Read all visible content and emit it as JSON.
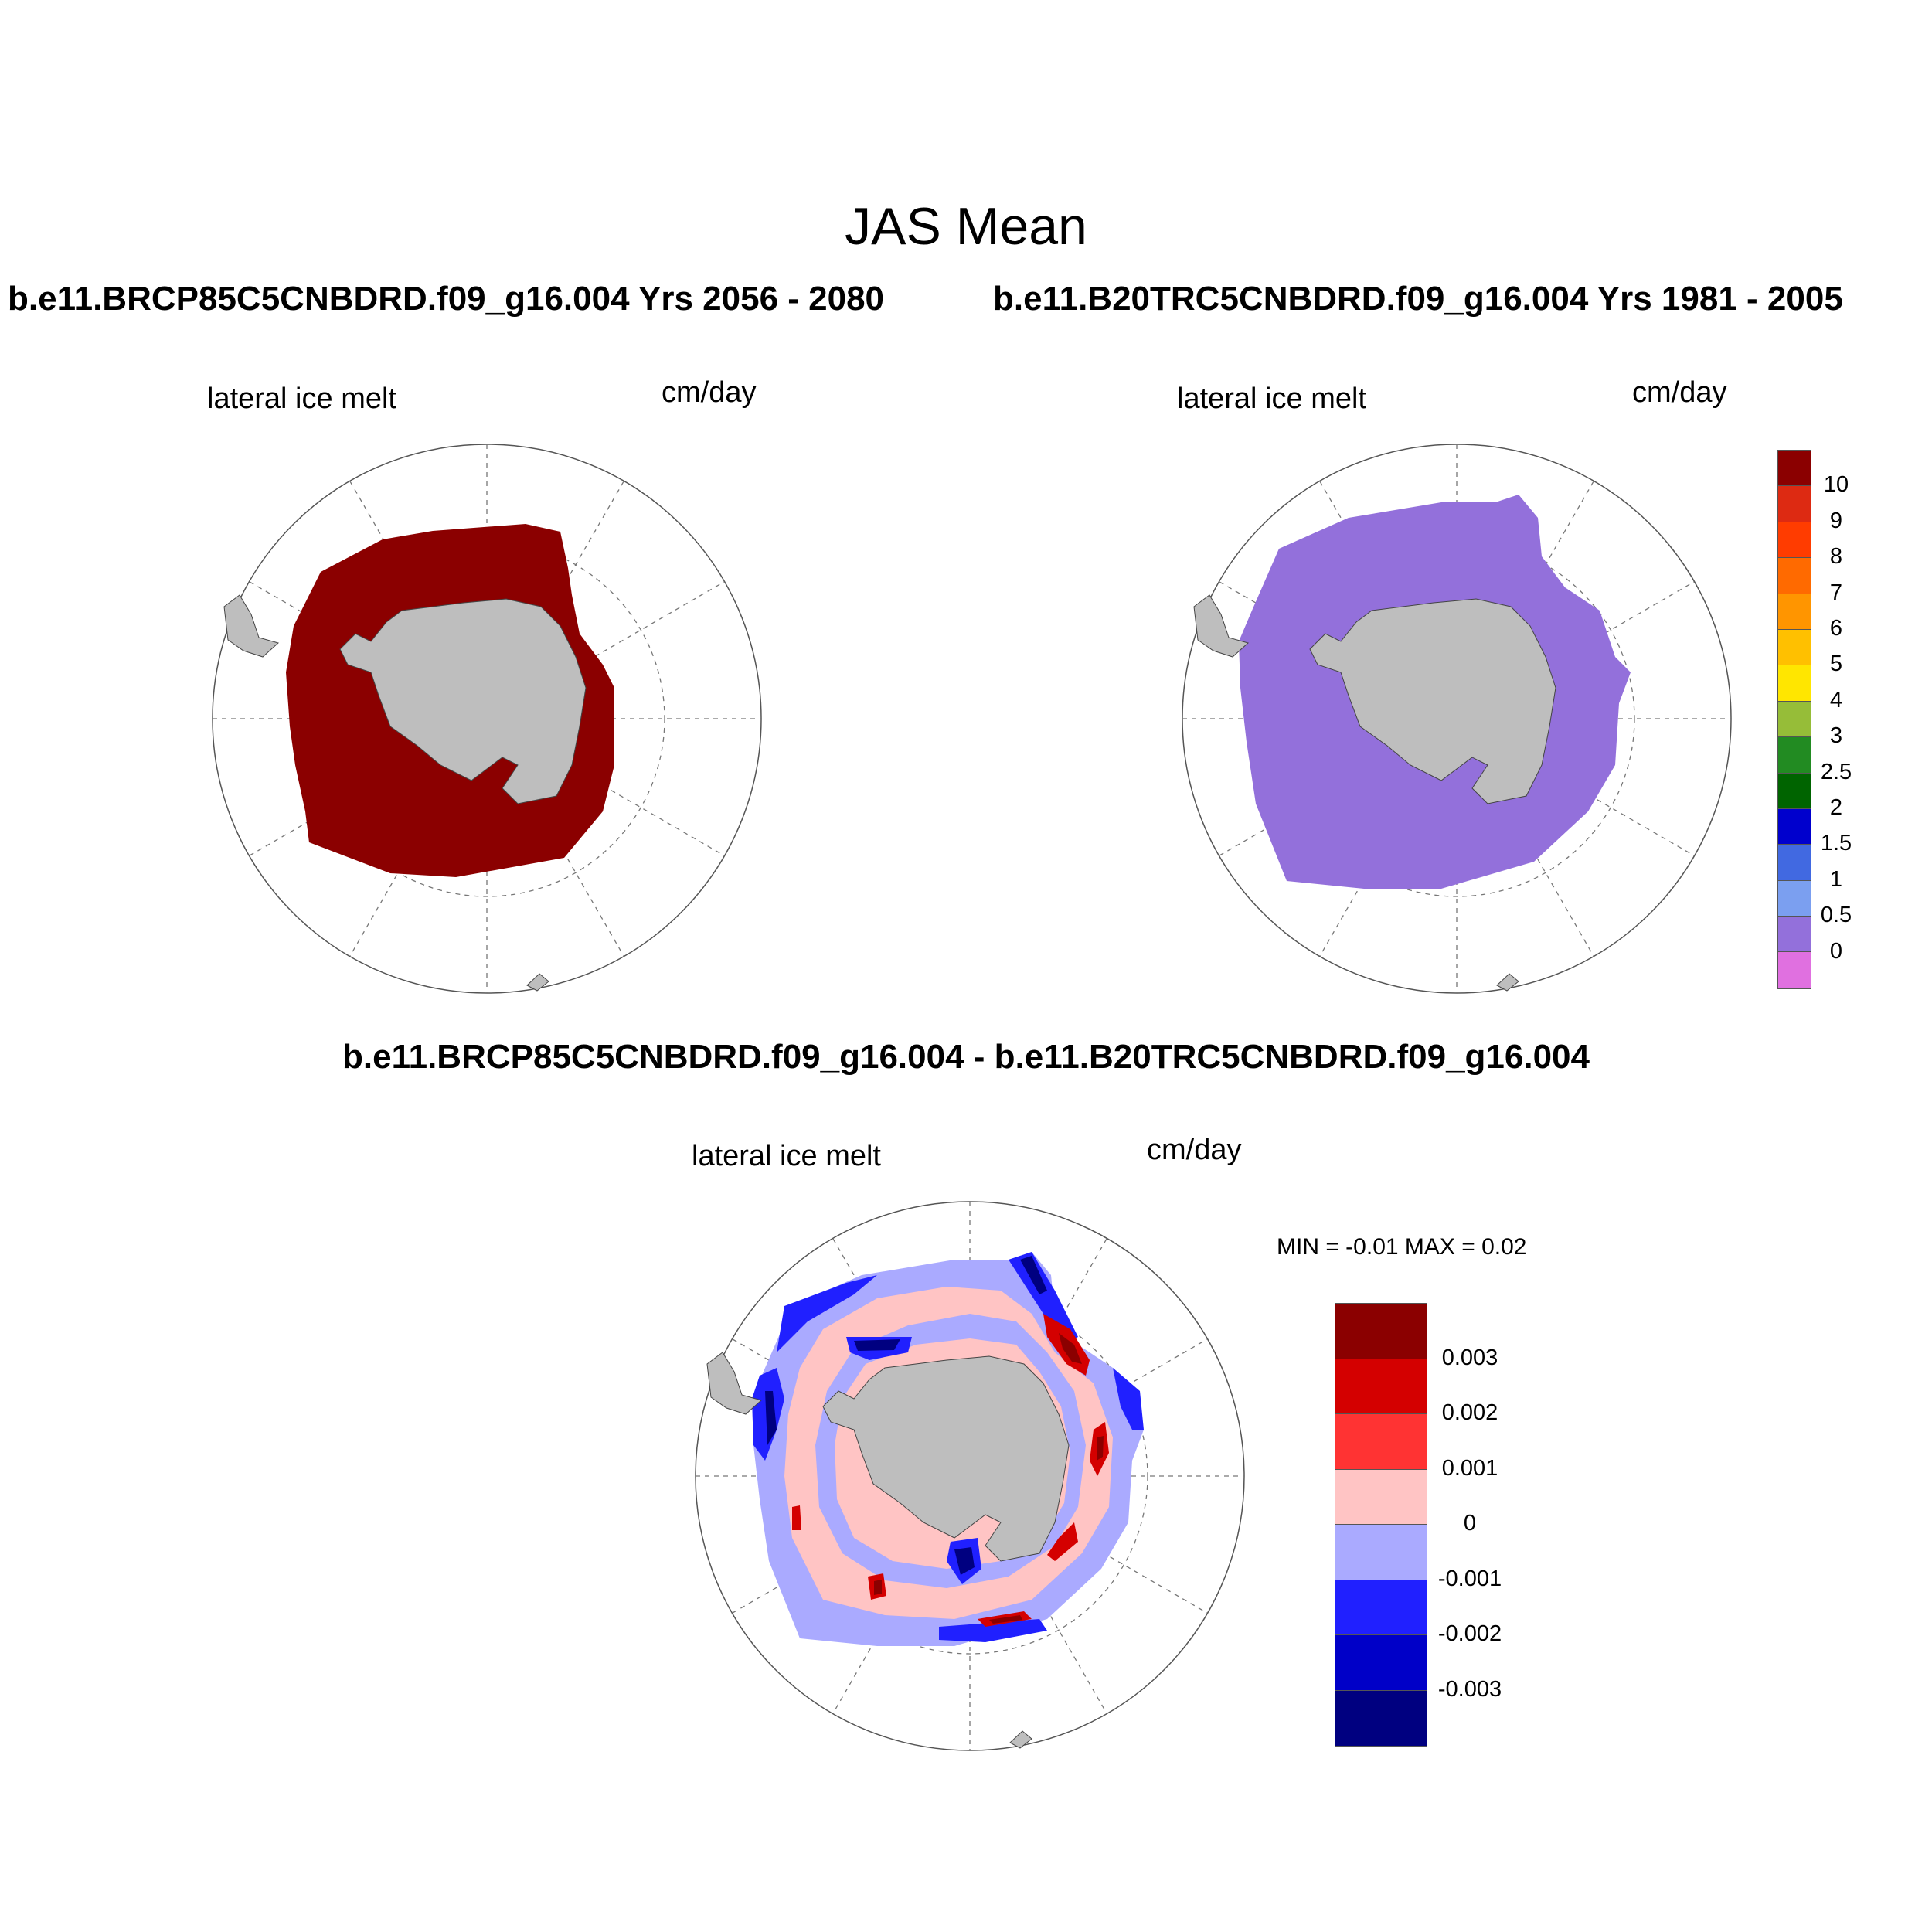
{
  "title": "JAS Mean",
  "panels": {
    "left": {
      "case_title": "b.e11.BRCP85C5CNBDRD.f09_g16.004  Yrs 2056 - 2080",
      "variable": "lateral ice melt",
      "units": "cm/day"
    },
    "right": {
      "case_title": "b.e11.B20TRC5CNBDRD.f09_g16.004  Yrs 1981 - 2005",
      "variable": "lateral ice melt",
      "units": "cm/day"
    },
    "diff": {
      "case_title": "b.e11.BRCP85C5CNBDRD.f09_g16.004 - b.e11.B20TRC5CNBDRD.f09_g16.004",
      "variable": "lateral ice melt",
      "units": "cm/day",
      "minmax": "MIN =  -0.01 MAX =   0.02"
    }
  },
  "colorbar_main": {
    "labels": [
      "10",
      "9",
      "8",
      "7",
      "6",
      "5",
      "4",
      "3",
      "2.5",
      "2",
      "1.5",
      "1",
      "0.5",
      "0"
    ],
    "colors": [
      "#8b0000",
      "#dd2a12",
      "#ff3c00",
      "#ff6a00",
      "#ff9500",
      "#ffc000",
      "#ffe600",
      "#96bd38",
      "#228b22",
      "#006400",
      "#0000cd",
      "#4169e1",
      "#7b9ff0",
      "#9370db",
      "#e070e0"
    ]
  },
  "colorbar_diff": {
    "labels": [
      "0.003",
      "0.002",
      "0.001",
      "0",
      "-0.001",
      "-0.002",
      "-0.003"
    ],
    "colors": [
      "#8b0000",
      "#d40000",
      "#ff3333",
      "#ffc4c4",
      "#aaaaff",
      "#2020ff",
      "#0000c8",
      "#000080"
    ]
  },
  "colors": {
    "land": "#bebebe",
    "left_field": "#8b0000",
    "right_field": "#9370db"
  }
}
